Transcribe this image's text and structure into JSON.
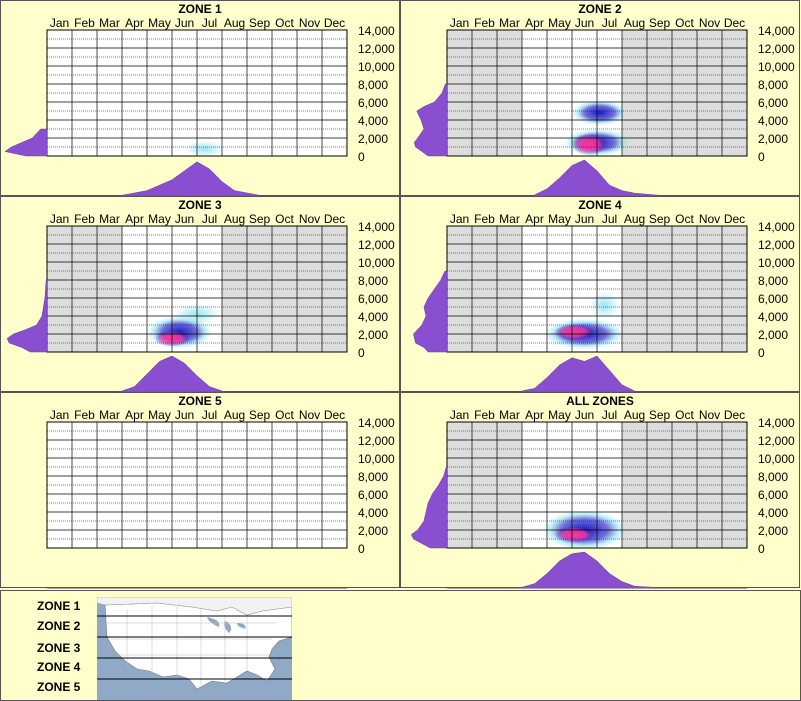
{
  "colors": {
    "background": "#ffffcc",
    "grid_inactive": "#dddddd",
    "grid_active": "#ffffff",
    "density": "#8a4fd0",
    "heat_low": "#7fe0f0",
    "heat_mid": "#1010c0",
    "heat_high": "#ff3399"
  },
  "chart_data": {
    "type": "heatmap",
    "months": [
      "Jan",
      "Feb",
      "Mar",
      "Apr",
      "May",
      "Jun",
      "Jul",
      "Aug",
      "Sep",
      "Oct",
      "Nov",
      "Dec"
    ],
    "y_ticks": [
      "14,000",
      "12,000",
      "10,000",
      "8,000",
      "6,000",
      "4,000",
      "2,000",
      "0"
    ],
    "ylim": [
      0,
      14000
    ],
    "panels": [
      {
        "title": "ZONE 1",
        "active_months": [],
        "elevation_density": [
          [
            0,
            0.5
          ],
          [
            500,
            1.0
          ],
          [
            1000,
            0.85
          ],
          [
            1500,
            0.6
          ],
          [
            2000,
            0.35
          ],
          [
            2500,
            0.25
          ],
          [
            3000,
            0.15
          ]
        ],
        "month_density": [
          [
            3.5,
            0.02
          ],
          [
            4.5,
            0.15
          ],
          [
            5.5,
            0.45
          ],
          [
            6.0,
            0.7
          ],
          [
            6.5,
            0.95
          ],
          [
            7.0,
            0.75
          ],
          [
            7.5,
            0.4
          ],
          [
            8.0,
            0.15
          ],
          [
            9.0,
            0.02
          ]
        ],
        "hotspots": [
          {
            "month": 6.8,
            "elev": 800,
            "rx": 0.8,
            "ry": 900,
            "level": 0.3
          }
        ]
      },
      {
        "title": "ZONE 2",
        "active_months": [
          4,
          5,
          6,
          7
        ],
        "elevation_density": [
          [
            0,
            0.45
          ],
          [
            500,
            0.6
          ],
          [
            1000,
            0.75
          ],
          [
            1500,
            0.78
          ],
          [
            2000,
            0.7
          ],
          [
            3000,
            0.55
          ],
          [
            4000,
            0.62
          ],
          [
            5000,
            0.72
          ],
          [
            5500,
            0.55
          ],
          [
            6000,
            0.3
          ],
          [
            7000,
            0.12
          ],
          [
            8000,
            0.04
          ]
        ],
        "month_density": [
          [
            4.0,
            0.03
          ],
          [
            4.5,
            0.2
          ],
          [
            5.0,
            0.5
          ],
          [
            5.5,
            0.85
          ],
          [
            6.0,
            1.0
          ],
          [
            6.5,
            0.7
          ],
          [
            7.0,
            0.3
          ],
          [
            7.5,
            0.15
          ],
          [
            8.0,
            0.08
          ],
          [
            9.0,
            0.02
          ]
        ],
        "hotspots": [
          {
            "month": 6.5,
            "elev": 1500,
            "rx": 1.3,
            "ry": 1500,
            "level": 0.55
          },
          {
            "month": 6.6,
            "elev": 4800,
            "rx": 1.1,
            "ry": 1400,
            "level": 0.75
          },
          {
            "month": 6.2,
            "elev": 1300,
            "rx": 0.7,
            "ry": 1200,
            "level": 1.0
          }
        ]
      },
      {
        "title": "ZONE 3",
        "active_months": [
          4,
          5,
          6,
          7
        ],
        "elevation_density": [
          [
            0,
            0.4
          ],
          [
            500,
            0.6
          ],
          [
            1000,
            0.9
          ],
          [
            1500,
            0.95
          ],
          [
            2000,
            0.8
          ],
          [
            2500,
            0.5
          ],
          [
            3000,
            0.25
          ],
          [
            4000,
            0.12
          ],
          [
            6000,
            0.05
          ],
          [
            8000,
            0.02
          ]
        ],
        "month_density": [
          [
            3.5,
            0.03
          ],
          [
            4.0,
            0.15
          ],
          [
            4.5,
            0.5
          ],
          [
            5.0,
            0.85
          ],
          [
            5.5,
            1.0
          ],
          [
            6.0,
            0.8
          ],
          [
            6.5,
            0.45
          ],
          [
            7.0,
            0.15
          ],
          [
            7.5,
            0.03
          ]
        ],
        "hotspots": [
          {
            "month": 5.8,
            "elev": 2200,
            "rx": 1.3,
            "ry": 1800,
            "level": 0.55
          },
          {
            "month": 5.5,
            "elev": 1500,
            "rx": 0.7,
            "ry": 900,
            "level": 1.0
          },
          {
            "month": 6.5,
            "elev": 4200,
            "rx": 0.9,
            "ry": 1200,
            "level": 0.35
          }
        ]
      },
      {
        "title": "ZONE 4",
        "active_months": [
          4,
          5,
          6,
          7
        ],
        "elevation_density": [
          [
            0,
            0.45
          ],
          [
            500,
            0.55
          ],
          [
            1000,
            0.75
          ],
          [
            2000,
            0.8
          ],
          [
            3000,
            0.6
          ],
          [
            4000,
            0.5
          ],
          [
            5000,
            0.55
          ],
          [
            6000,
            0.45
          ],
          [
            7000,
            0.3
          ],
          [
            8000,
            0.15
          ],
          [
            9000,
            0.05
          ]
        ],
        "month_density": [
          [
            3.5,
            0.03
          ],
          [
            4.0,
            0.1
          ],
          [
            4.5,
            0.4
          ],
          [
            5.0,
            0.75
          ],
          [
            5.5,
            0.95
          ],
          [
            6.0,
            0.85
          ],
          [
            6.5,
            1.0
          ],
          [
            7.0,
            0.6
          ],
          [
            7.5,
            0.2
          ],
          [
            8.0,
            0.03
          ]
        ],
        "hotspots": [
          {
            "month": 6.0,
            "elev": 2000,
            "rx": 1.6,
            "ry": 1700,
            "level": 0.6
          },
          {
            "month": 5.6,
            "elev": 2200,
            "rx": 0.8,
            "ry": 900,
            "level": 1.0
          },
          {
            "month": 6.8,
            "elev": 5200,
            "rx": 0.6,
            "ry": 1500,
            "level": 0.25
          }
        ]
      },
      {
        "title": "ZONE 5",
        "active_months": [],
        "elevation_density": [],
        "month_density": [],
        "hotspots": []
      },
      {
        "title": "ALL ZONES",
        "active_months": [
          4,
          5,
          6,
          7
        ],
        "elevation_density": [
          [
            0,
            0.4
          ],
          [
            500,
            0.6
          ],
          [
            1000,
            0.8
          ],
          [
            1500,
            0.85
          ],
          [
            2000,
            0.7
          ],
          [
            3000,
            0.55
          ],
          [
            4000,
            0.5
          ],
          [
            5000,
            0.45
          ],
          [
            6000,
            0.35
          ],
          [
            7000,
            0.2
          ],
          [
            8000,
            0.08
          ],
          [
            9000,
            0.02
          ]
        ],
        "month_density": [
          [
            3.5,
            0.02
          ],
          [
            4.0,
            0.12
          ],
          [
            4.5,
            0.4
          ],
          [
            5.0,
            0.75
          ],
          [
            5.5,
            0.95
          ],
          [
            6.0,
            1.0
          ],
          [
            6.5,
            0.75
          ],
          [
            7.0,
            0.4
          ],
          [
            7.5,
            0.18
          ],
          [
            8.0,
            0.05
          ],
          [
            9.0,
            0.01
          ]
        ],
        "hotspots": [
          {
            "month": 6.0,
            "elev": 2000,
            "rx": 1.7,
            "ry": 2200,
            "level": 0.55
          },
          {
            "month": 5.6,
            "elev": 1500,
            "rx": 0.8,
            "ry": 900,
            "level": 1.0
          }
        ]
      }
    ]
  },
  "legend": {
    "zones": [
      "ZONE 1",
      "ZONE 2",
      "ZONE 3",
      "ZONE 4",
      "ZONE 5"
    ]
  }
}
